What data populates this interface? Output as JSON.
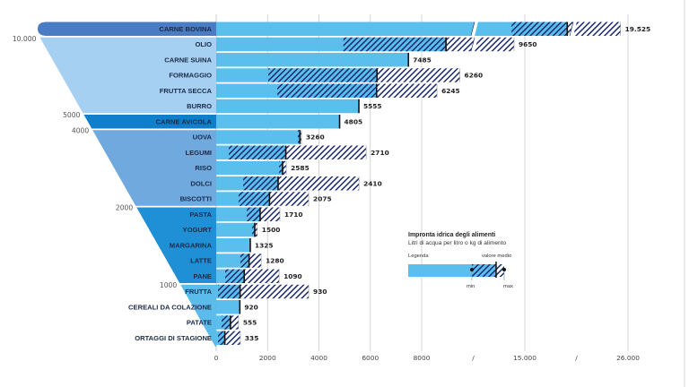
{
  "chart_data": {
    "type": "bar",
    "subtype": "horizontal range bar with mean marker, funnel category panel, broken x axis",
    "xlim": [
      0,
      26000
    ],
    "x_axis_break": [
      8000,
      15000,
      26000
    ],
    "x_ticks": [
      "0",
      "2000",
      "4000",
      "6000",
      "8000",
      "/",
      "15.000",
      "/",
      "26.000"
    ],
    "x_tick_values": [
      0,
      2000,
      4000,
      6000,
      8000,
      11500,
      15000,
      20500,
      26000
    ],
    "grid": "vertical",
    "rows": [
      {
        "label": "CARNE BOVINA",
        "mean": 19525,
        "value_label": "19.525",
        "min": 14100,
        "max": 25200
      },
      {
        "label": "OLIO",
        "mean": 9650,
        "value_label": "9650",
        "min": 4950,
        "max": 14270
      },
      {
        "label": "CARNE SUINA",
        "mean": 7485,
        "value_label": "7485",
        "min": null,
        "max": null
      },
      {
        "label": "FORMAGGIO",
        "mean": 6260,
        "value_label": "6260",
        "min": 2030,
        "max": 10590
      },
      {
        "label": "FRUTTA SECCA",
        "mean": 6245,
        "value_label": "6245",
        "min": 2380,
        "max": 9040
      },
      {
        "label": "BURRO",
        "mean": 5555,
        "value_label": "5555",
        "min": null,
        "max": null
      },
      {
        "label": "CARNE AVICOLA",
        "mean": 4805,
        "value_label": "4805",
        "min": null,
        "max": null
      },
      {
        "label": "UOVA",
        "mean": 3260,
        "value_label": "3260",
        "min": 3180,
        "max": 3320
      },
      {
        "label": "LEGUMI",
        "mean": 2710,
        "value_label": "2710",
        "min": 490,
        "max": 5840
      },
      {
        "label": "RISO",
        "mean": 2585,
        "value_label": "2585",
        "min": 2450,
        "max": 2730
      },
      {
        "label": "DOLCI",
        "mean": 2410,
        "value_label": "2410",
        "min": 1050,
        "max": 5560
      },
      {
        "label": "BISCOTTI",
        "mean": 2075,
        "value_label": "2075",
        "min": 870,
        "max": 3600
      },
      {
        "label": "PASTA",
        "mean": 1710,
        "value_label": "1710",
        "min": 1190,
        "max": 2480
      },
      {
        "label": "YOGURT",
        "mean": 1500,
        "value_label": "1500",
        "min": 1400,
        "max": 1600
      },
      {
        "label": "MARGARINA",
        "mean": 1325,
        "value_label": "1325",
        "min": null,
        "max": null
      },
      {
        "label": "LATTE",
        "mean": 1280,
        "value_label": "1280",
        "min": 940,
        "max": 1750
      },
      {
        "label": "PANE",
        "mean": 1090,
        "value_label": "1090",
        "min": 350,
        "max": 2450
      },
      {
        "label": "FRUTTA",
        "mean": 930,
        "value_label": "930",
        "min": 70,
        "max": 3600
      },
      {
        "label": "CEREALI DA COLAZIONE",
        "mean": 920,
        "value_label": "920",
        "min": null,
        "max": null
      },
      {
        "label": "PATATE",
        "mean": 555,
        "value_label": "555",
        "min": 210,
        "max": 870
      },
      {
        "label": "ORTAGGI DI STAGIONE",
        "mean": 335,
        "value_label": "335",
        "min": 70,
        "max": 940
      }
    ],
    "funnel_bands": [
      {
        "first_row": 0,
        "last_row": 0,
        "color": "#4a7cc4",
        "scale_label": ""
      },
      {
        "first_row": 1,
        "last_row": 5,
        "color": "#a6d0f2",
        "scale_label": "10.000"
      },
      {
        "first_row": 6,
        "last_row": 6,
        "color": "#0f7fcc",
        "scale_label": "5000"
      },
      {
        "first_row": 7,
        "last_row": 11,
        "color": "#6fa9de",
        "scale_label": "4000"
      },
      {
        "first_row": 12,
        "last_row": 16,
        "color": "#1f90d6",
        "scale_label": "2000"
      },
      {
        "first_row": 17,
        "last_row": 20,
        "color": "#5bbcec",
        "scale_label": "1000"
      }
    ],
    "colors": {
      "bar": "#5bbfee",
      "hatch": "#1b2a6b",
      "mean_marker": "#111111",
      "grid": "#cccccc"
    }
  },
  "legend": {
    "title": "Impronta idrica degli alimenti",
    "subtitle": "Litri di acqua per litro o kg di alimento",
    "legend_label": "Legenda",
    "mean_label": "valore medio",
    "min_label": "min",
    "max_label": "max"
  }
}
